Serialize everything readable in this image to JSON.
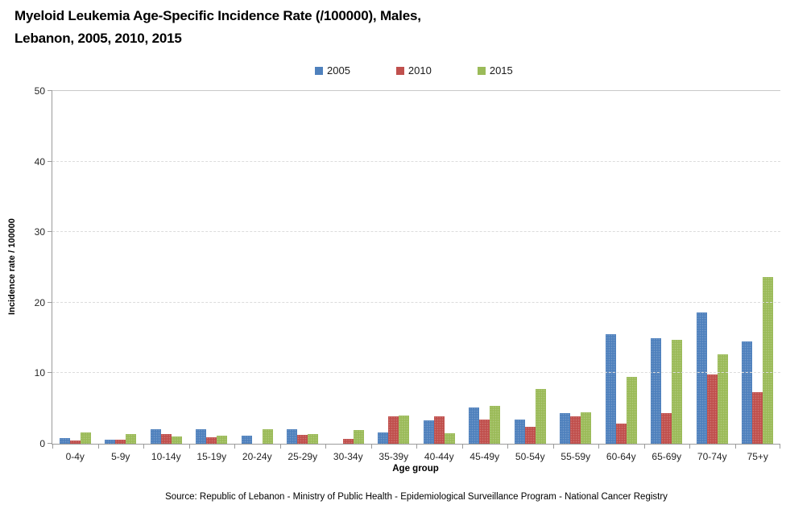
{
  "chart": {
    "title_lines": [
      "Myeloid Leukemia Age-Specific Incidence Rate (/100000), Males,",
      "Lebanon, 2005, 2010, 2015"
    ],
    "source": "Source: Republic of Lebanon - Ministry of Public Health - Epidemiological Surveillance Program - National Cancer Registry"
  },
  "chart_data": {
    "type": "bar",
    "title": "Myeloid Leukemia Age-Specific Incidence Rate (/100000), Males, Lebanon, 2005, 2010, 2015",
    "xlabel": "Age group",
    "ylabel": "Incidence rate / 100000",
    "ylim": [
      0,
      50
    ],
    "yticks": [
      0,
      10,
      20,
      30,
      40,
      50
    ],
    "grid": true,
    "legend_position": "top",
    "categories": [
      "0-4y",
      "5-9y",
      "10-14y",
      "15-19y",
      "20-24y",
      "25-29y",
      "30-34y",
      "35-39y",
      "40-44y",
      "45-49y",
      "50-54y",
      "55-59y",
      "60-64y",
      "65-69y",
      "70-74y",
      "75+y"
    ],
    "series": [
      {
        "name": "2005",
        "color": "#4F81BD",
        "values": [
          0.8,
          0.6,
          2.0,
          2.0,
          1.1,
          2.1,
          0,
          1.6,
          3.3,
          5.1,
          3.4,
          4.3,
          15.5,
          14.9,
          18.6,
          14.5
        ]
      },
      {
        "name": "2010",
        "color": "#C0504D",
        "values": [
          0.5,
          0.6,
          1.4,
          0.9,
          0,
          1.3,
          0.7,
          3.9,
          3.9,
          3.4,
          2.4,
          3.9,
          2.8,
          4.3,
          9.8,
          7.3
        ]
      },
      {
        "name": "2015",
        "color": "#9BBB59",
        "values": [
          1.6,
          1.4,
          1.0,
          1.1,
          2.0,
          1.4,
          1.9,
          4.0,
          1.5,
          5.4,
          7.8,
          4.4,
          9.5,
          14.7,
          12.7,
          23.6
        ]
      }
    ]
  }
}
